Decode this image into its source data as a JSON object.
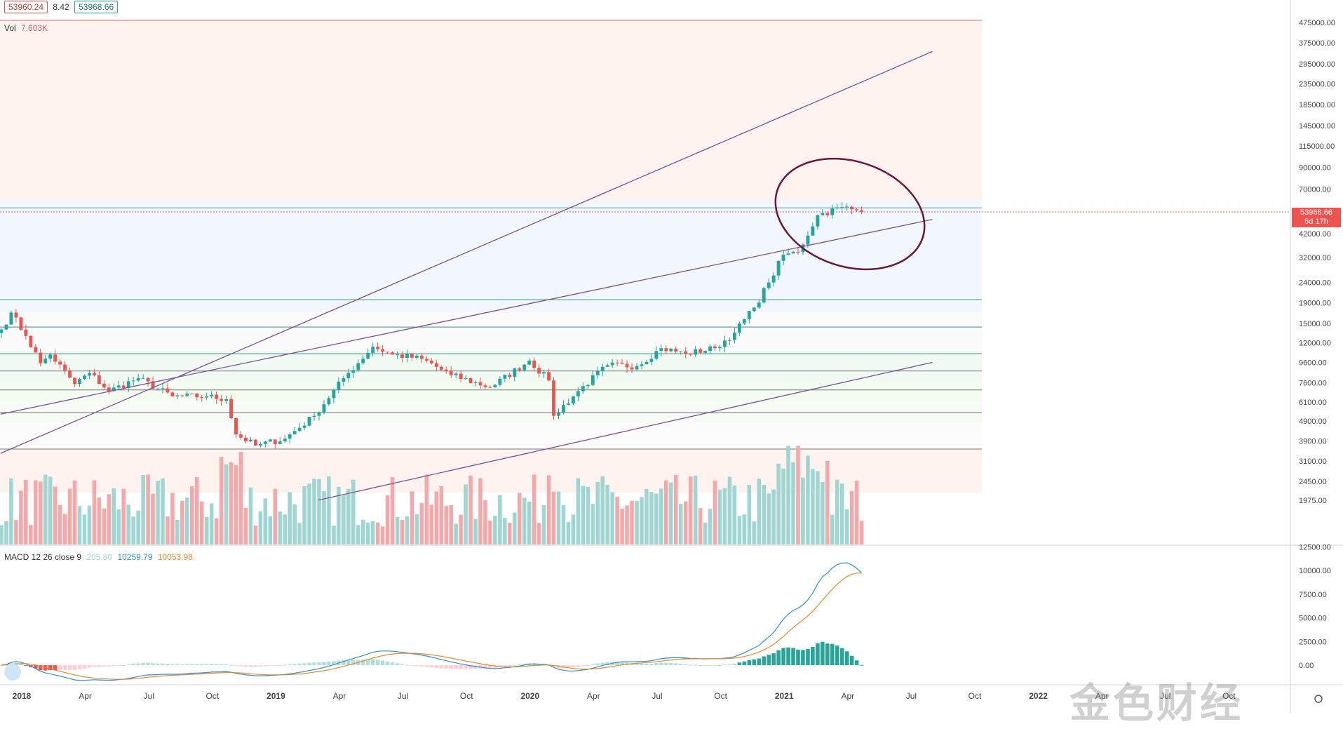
{
  "header": {
    "ohlc_open": "53960.24",
    "ohlc_change": "8.42",
    "ohlc_close": "53968.66",
    "vol_label": "Vol",
    "vol_value": "7.603K",
    "macd_label": "MACD 12 26 close 9",
    "macd_hist": "205.80",
    "macd_line": "10259.79",
    "macd_signal": "10053.98"
  },
  "price_tag": {
    "price": "53968.66",
    "countdown": "5d 17h"
  },
  "colors": {
    "up": "#26a69a",
    "down": "#ef5350",
    "vol_up": "#9fd6d2",
    "vol_down": "#f4a8aa",
    "channel": "#7b4f9e",
    "ellipse": "#6b1741",
    "macd": "#2f8fd6",
    "signal": "#e08a2f"
  },
  "chart_data": {
    "type": "candlestick",
    "timeframe": "weekly",
    "price_axis_ticks": [
      "475000.00",
      "375000.00",
      "295000.00",
      "235000.00",
      "185000.00",
      "145000.00",
      "115000.00",
      "90000.00",
      "70000.00",
      "53968.66",
      "42000.00",
      "32000.00",
      "24000.00",
      "19000.00",
      "15000.00",
      "12000.00",
      "9600.00",
      "7600.00",
      "6100.00",
      "4900.00",
      "3900.00",
      "3100.00",
      "2450.00",
      "1975.00"
    ],
    "macd_axis_ticks": [
      "12500.00",
      "10000.00",
      "7500.00",
      "5000.00",
      "2500.00",
      "0.00"
    ],
    "time_axis_ticks": [
      "2018",
      "Apr",
      "Jul",
      "Oct",
      "2019",
      "Apr",
      "Jul",
      "Oct",
      "2020",
      "Apr",
      "Jul",
      "Oct",
      "2021",
      "Apr",
      "Jul",
      "Oct",
      "2022",
      "Apr",
      "Jul",
      "Oct"
    ],
    "price_path_keypoints": [
      [
        0,
        14000
      ],
      [
        2,
        17000
      ],
      [
        5,
        13000
      ],
      [
        8,
        9500
      ],
      [
        10,
        10500
      ],
      [
        15,
        7500
      ],
      [
        18,
        8500
      ],
      [
        22,
        6900
      ],
      [
        28,
        8000
      ],
      [
        35,
        6500
      ],
      [
        42,
        6500
      ],
      [
        46,
        6300
      ],
      [
        48,
        4200
      ],
      [
        52,
        3700
      ],
      [
        58,
        4000
      ],
      [
        64,
        5200
      ],
      [
        70,
        8000
      ],
      [
        76,
        11500
      ],
      [
        80,
        10500
      ],
      [
        86,
        10000
      ],
      [
        92,
        8300
      ],
      [
        100,
        7200
      ],
      [
        108,
        9800
      ],
      [
        112,
        7800
      ],
      [
        113,
        5200
      ],
      [
        118,
        6900
      ],
      [
        124,
        9300
      ],
      [
        130,
        9200
      ],
      [
        135,
        11300
      ],
      [
        140,
        10600
      ],
      [
        146,
        11300
      ],
      [
        150,
        13500
      ],
      [
        154,
        18000
      ],
      [
        157,
        24000
      ],
      [
        160,
        33000
      ],
      [
        163,
        34000
      ],
      [
        167,
        52000
      ],
      [
        172,
        57000
      ],
      [
        175,
        55000
      ],
      [
        176,
        53968.66
      ]
    ],
    "last_price": 53968.66,
    "horizontal_levels": [
      56500,
      19700,
      14400,
      10600,
      8700,
      7000,
      5400,
      3550
    ],
    "channel_lines": [
      {
        "from": [
          "2017-12",
          3380
        ],
        "to": [
          "2021-08",
          340000
        ]
      },
      {
        "from": [
          "2017-12",
          5300
        ],
        "to": [
          "2021-08",
          49500
        ]
      },
      {
        "from": [
          "2019-03",
          1975
        ],
        "to": [
          "2021-08",
          9600
        ]
      }
    ],
    "macd_series": [
      "MACD",
      "Signal",
      "Histogram"
    ]
  },
  "watermark": "金色财经"
}
